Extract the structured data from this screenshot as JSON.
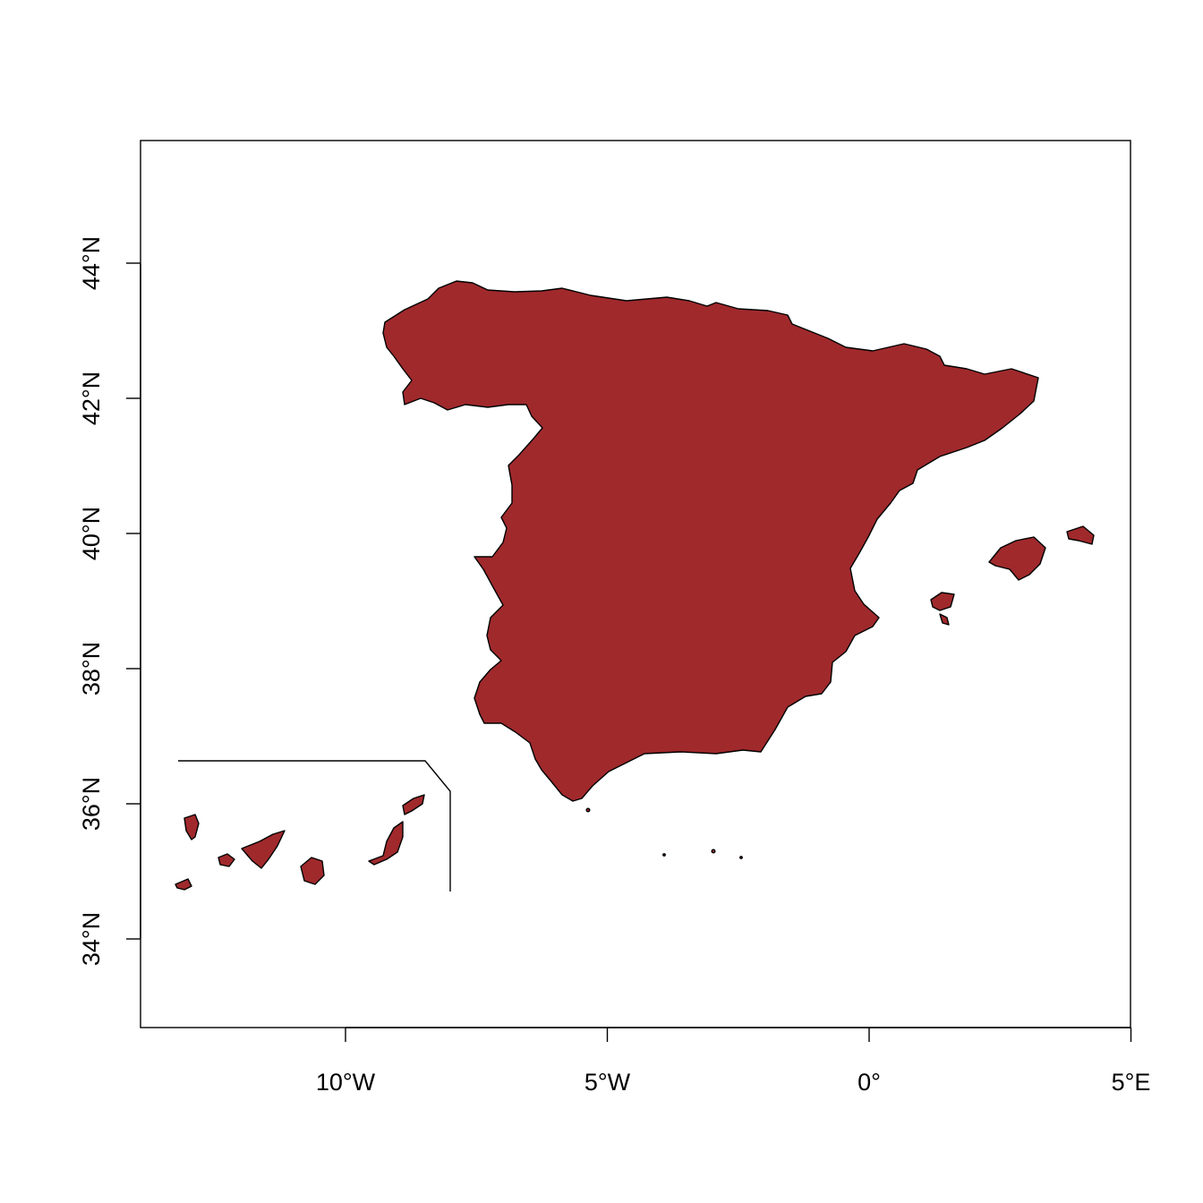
{
  "map": {
    "type": "choropleth-single",
    "region": "Spain",
    "fill_color": "#A0292C",
    "border_color": "#000000",
    "background": "#ffffff",
    "x_axis": {
      "ticks": [
        {
          "lon": -10,
          "label": "10°W"
        },
        {
          "lon": -5,
          "label": "5°W"
        },
        {
          "lon": 0,
          "label": "0°"
        },
        {
          "lon": 5,
          "label": "5°E"
        }
      ]
    },
    "y_axis": {
      "ticks": [
        {
          "lat": 34,
          "label": "34°N"
        },
        {
          "lat": 36,
          "label": "36°N"
        },
        {
          "lat": 38,
          "label": "38°N"
        },
        {
          "lat": 40,
          "label": "40°N"
        },
        {
          "lat": 42,
          "label": "42°N"
        },
        {
          "lat": 44,
          "label": "44°N"
        }
      ]
    },
    "inset": "Canary Islands (relocated)"
  }
}
